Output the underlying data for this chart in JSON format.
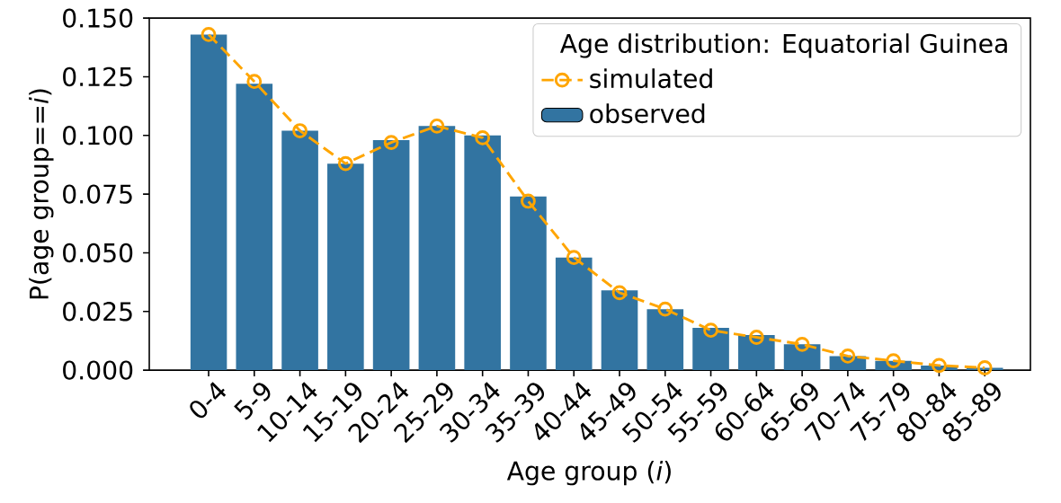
{
  "chart_data": {
    "type": "bar",
    "xlabel": "Age group (*i*)",
    "ylabel": "P(age group==*i*)",
    "legend_title": "Age distribution: Equatorial Guinea",
    "categories": [
      "0-4",
      "5-9",
      "10-14",
      "15-19",
      "20-24",
      "25-29",
      "30-34",
      "35-39",
      "40-44",
      "45-49",
      "50-54",
      "55-59",
      "60-64",
      "65-69",
      "70-74",
      "75-79",
      "80-84",
      "85-89"
    ],
    "series": [
      {
        "name": "simulated",
        "type": "line",
        "color": "#ffa500",
        "marker": "circle",
        "line_style": "dashed",
        "values": [
          0.143,
          0.123,
          0.102,
          0.088,
          0.097,
          0.104,
          0.099,
          0.072,
          0.048,
          0.033,
          0.026,
          0.017,
          0.014,
          0.011,
          0.006,
          0.004,
          0.002,
          0.001
        ]
      },
      {
        "name": "observed",
        "color": "#3274a1",
        "values": [
          0.143,
          0.122,
          0.102,
          0.088,
          0.098,
          0.104,
          0.1,
          0.074,
          0.048,
          0.034,
          0.026,
          0.018,
          0.015,
          0.011,
          0.006,
          0.004,
          0.002,
          0.001
        ]
      }
    ],
    "ylim": [
      0,
      0.15
    ],
    "yticks": [
      {
        "value": 0,
        "label": "0.000"
      },
      {
        "value": 0.025,
        "label": "0.025"
      },
      {
        "value": 0.05,
        "label": "0.050"
      },
      {
        "value": 0.075,
        "label": "0.075"
      },
      {
        "value": 0.1,
        "label": "0.100"
      },
      {
        "value": 0.125,
        "label": "0.125"
      },
      {
        "value": 0.15,
        "label": "0.150"
      }
    ],
    "grid": false,
    "legend": "top right"
  }
}
